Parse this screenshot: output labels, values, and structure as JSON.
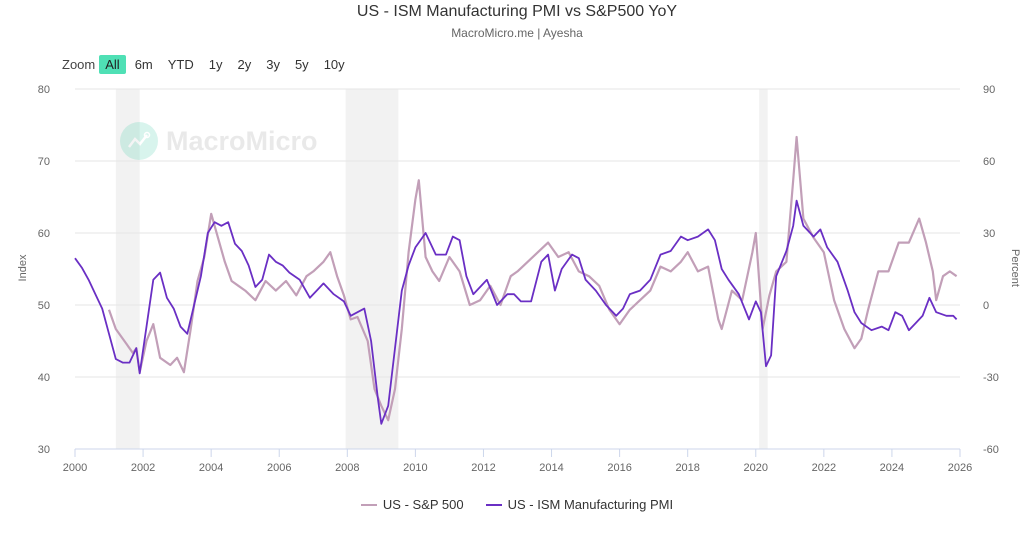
{
  "header": {
    "title": "US - ISM Manufacturing PMI vs S&P500 YoY",
    "subtitle": "MacroMicro.me | Ayesha"
  },
  "range_selector": {
    "label": "Zoom",
    "buttons": [
      "All",
      "6m",
      "YTD",
      "1y",
      "2y",
      "3y",
      "5y",
      "10y"
    ],
    "active": "All",
    "active_color": "#4fe0b5"
  },
  "watermark": {
    "text": "MacroMicro",
    "icon": "chart-logo-icon"
  },
  "legend": {
    "items": [
      {
        "label": "US - S&P 500",
        "color": "#c29fb8"
      },
      {
        "label": "US - ISM Manufacturing PMI",
        "color": "#6a2fc4"
      }
    ]
  },
  "chart_data": {
    "type": "line",
    "title": "US - ISM Manufacturing PMI vs S&P500 YoY",
    "subtitle": "MacroMicro.me | Ayesha",
    "xlabel": "",
    "x_range": [
      2000,
      2026
    ],
    "x_ticks": [
      "2000",
      "2002",
      "2004",
      "2006",
      "2008",
      "2010",
      "2012",
      "2014",
      "2016",
      "2018",
      "2020",
      "2022",
      "2024",
      "2026"
    ],
    "y_left": {
      "label": "Index",
      "range": [
        30,
        80
      ],
      "ticks": [
        30,
        40,
        50,
        60,
        70,
        80
      ]
    },
    "y_right": {
      "label": "Percent",
      "range": [
        -60,
        90
      ],
      "ticks": [
        -60,
        -30,
        0,
        30,
        60,
        90
      ]
    },
    "grid": true,
    "legend_position": "bottom",
    "recession_bands": [
      [
        2001.2,
        2001.9
      ],
      [
        2007.95,
        2009.5
      ],
      [
        2020.1,
        2020.35
      ]
    ],
    "series": [
      {
        "name": "US - S&P 500",
        "axis": "right",
        "color": "#c29fb8",
        "points": [
          [
            2001.0,
            -2
          ],
          [
            2001.2,
            -10
          ],
          [
            2001.5,
            -16
          ],
          [
            2001.7,
            -20
          ],
          [
            2001.8,
            -18
          ],
          [
            2001.9,
            -28
          ],
          [
            2002.1,
            -15
          ],
          [
            2002.3,
            -8
          ],
          [
            2002.5,
            -22
          ],
          [
            2002.8,
            -25
          ],
          [
            2003.0,
            -22
          ],
          [
            2003.2,
            -28
          ],
          [
            2003.4,
            -10
          ],
          [
            2003.6,
            10
          ],
          [
            2003.8,
            20
          ],
          [
            2004.0,
            38
          ],
          [
            2004.2,
            28
          ],
          [
            2004.4,
            18
          ],
          [
            2004.6,
            10
          ],
          [
            2004.8,
            8
          ],
          [
            2005.0,
            6
          ],
          [
            2005.3,
            2
          ],
          [
            2005.6,
            10
          ],
          [
            2005.9,
            6
          ],
          [
            2006.2,
            10
          ],
          [
            2006.5,
            4
          ],
          [
            2006.8,
            12
          ],
          [
            2007.0,
            14
          ],
          [
            2007.3,
            18
          ],
          [
            2007.5,
            22
          ],
          [
            2007.7,
            12
          ],
          [
            2007.9,
            4
          ],
          [
            2008.1,
            -6
          ],
          [
            2008.3,
            -5
          ],
          [
            2008.6,
            -15
          ],
          [
            2008.8,
            -35
          ],
          [
            2009.0,
            -42
          ],
          [
            2009.2,
            -48
          ],
          [
            2009.4,
            -35
          ],
          [
            2009.6,
            -10
          ],
          [
            2009.8,
            22
          ],
          [
            2010.0,
            44
          ],
          [
            2010.1,
            52
          ],
          [
            2010.3,
            20
          ],
          [
            2010.5,
            14
          ],
          [
            2010.7,
            10
          ],
          [
            2011.0,
            20
          ],
          [
            2011.3,
            14
          ],
          [
            2011.6,
            0
          ],
          [
            2011.9,
            2
          ],
          [
            2012.2,
            8
          ],
          [
            2012.5,
            0
          ],
          [
            2012.8,
            12
          ],
          [
            2013.0,
            14
          ],
          [
            2013.3,
            18
          ],
          [
            2013.6,
            22
          ],
          [
            2013.9,
            26
          ],
          [
            2014.2,
            20
          ],
          [
            2014.5,
            22
          ],
          [
            2014.8,
            14
          ],
          [
            2015.1,
            12
          ],
          [
            2015.4,
            8
          ],
          [
            2015.7,
            -2
          ],
          [
            2016.0,
            -8
          ],
          [
            2016.3,
            -2
          ],
          [
            2016.6,
            2
          ],
          [
            2016.9,
            6
          ],
          [
            2017.2,
            16
          ],
          [
            2017.5,
            14
          ],
          [
            2017.8,
            18
          ],
          [
            2018.0,
            22
          ],
          [
            2018.3,
            14
          ],
          [
            2018.6,
            16
          ],
          [
            2018.9,
            -6
          ],
          [
            2019.0,
            -10
          ],
          [
            2019.3,
            6
          ],
          [
            2019.6,
            2
          ],
          [
            2019.9,
            22
          ],
          [
            2020.0,
            30
          ],
          [
            2020.2,
            -10
          ],
          [
            2020.4,
            4
          ],
          [
            2020.6,
            14
          ],
          [
            2020.9,
            18
          ],
          [
            2021.1,
            52
          ],
          [
            2021.2,
            70
          ],
          [
            2021.4,
            36
          ],
          [
            2021.7,
            28
          ],
          [
            2022.0,
            22
          ],
          [
            2022.3,
            2
          ],
          [
            2022.6,
            -10
          ],
          [
            2022.9,
            -18
          ],
          [
            2023.1,
            -14
          ],
          [
            2023.3,
            -2
          ],
          [
            2023.6,
            14
          ],
          [
            2023.9,
            14
          ],
          [
            2024.2,
            26
          ],
          [
            2024.5,
            26
          ],
          [
            2024.8,
            36
          ],
          [
            2025.0,
            26
          ],
          [
            2025.2,
            14
          ],
          [
            2025.3,
            2
          ],
          [
            2025.5,
            12
          ],
          [
            2025.7,
            14
          ],
          [
            2025.9,
            12
          ]
        ]
      },
      {
        "name": "US - ISM Manufacturing PMI",
        "axis": "left",
        "color": "#6a2fc4",
        "points": [
          [
            2000.0,
            56.5
          ],
          [
            2000.2,
            55.2
          ],
          [
            2000.4,
            53.5
          ],
          [
            2000.6,
            51.5
          ],
          [
            2000.8,
            49.5
          ],
          [
            2001.0,
            46.0
          ],
          [
            2001.2,
            42.5
          ],
          [
            2001.4,
            42.0
          ],
          [
            2001.6,
            42.0
          ],
          [
            2001.8,
            44.0
          ],
          [
            2001.9,
            40.5
          ],
          [
            2002.1,
            47.0
          ],
          [
            2002.3,
            53.5
          ],
          [
            2002.5,
            54.5
          ],
          [
            2002.7,
            51.0
          ],
          [
            2002.9,
            49.5
          ],
          [
            2003.1,
            47.0
          ],
          [
            2003.3,
            46.0
          ],
          [
            2003.5,
            50.0
          ],
          [
            2003.7,
            54.0
          ],
          [
            2003.9,
            60.0
          ],
          [
            2004.1,
            61.5
          ],
          [
            2004.3,
            61.0
          ],
          [
            2004.5,
            61.5
          ],
          [
            2004.7,
            58.5
          ],
          [
            2004.9,
            57.5
          ],
          [
            2005.1,
            55.5
          ],
          [
            2005.3,
            52.5
          ],
          [
            2005.5,
            53.5
          ],
          [
            2005.7,
            57.0
          ],
          [
            2005.9,
            56.0
          ],
          [
            2006.1,
            55.5
          ],
          [
            2006.3,
            54.5
          ],
          [
            2006.6,
            53.5
          ],
          [
            2006.9,
            51.0
          ],
          [
            2007.1,
            52.0
          ],
          [
            2007.3,
            53.0
          ],
          [
            2007.6,
            51.5
          ],
          [
            2007.9,
            50.5
          ],
          [
            2008.1,
            48.5
          ],
          [
            2008.3,
            49.0
          ],
          [
            2008.5,
            49.5
          ],
          [
            2008.7,
            45.0
          ],
          [
            2008.9,
            37.0
          ],
          [
            2009.0,
            33.5
          ],
          [
            2009.2,
            36.0
          ],
          [
            2009.4,
            44.0
          ],
          [
            2009.6,
            52.0
          ],
          [
            2009.8,
            55.5
          ],
          [
            2010.0,
            58.0
          ],
          [
            2010.3,
            60.0
          ],
          [
            2010.6,
            57.0
          ],
          [
            2010.9,
            57.0
          ],
          [
            2011.1,
            59.5
          ],
          [
            2011.3,
            59.0
          ],
          [
            2011.5,
            54.0
          ],
          [
            2011.7,
            51.5
          ],
          [
            2011.9,
            52.5
          ],
          [
            2012.1,
            53.5
          ],
          [
            2012.4,
            50.0
          ],
          [
            2012.7,
            51.5
          ],
          [
            2012.9,
            51.5
          ],
          [
            2013.1,
            50.5
          ],
          [
            2013.4,
            50.5
          ],
          [
            2013.7,
            56.0
          ],
          [
            2013.9,
            57.0
          ],
          [
            2014.1,
            52.0
          ],
          [
            2014.3,
            55.0
          ],
          [
            2014.6,
            57.0
          ],
          [
            2014.8,
            56.5
          ],
          [
            2015.0,
            53.5
          ],
          [
            2015.3,
            52.0
          ],
          [
            2015.6,
            50.0
          ],
          [
            2015.9,
            48.5
          ],
          [
            2016.1,
            49.5
          ],
          [
            2016.3,
            51.5
          ],
          [
            2016.6,
            52.0
          ],
          [
            2016.9,
            53.5
          ],
          [
            2017.2,
            57.0
          ],
          [
            2017.5,
            57.5
          ],
          [
            2017.8,
            59.5
          ],
          [
            2018.0,
            59.0
          ],
          [
            2018.3,
            59.5
          ],
          [
            2018.6,
            60.5
          ],
          [
            2018.8,
            59.0
          ],
          [
            2019.0,
            55.0
          ],
          [
            2019.2,
            53.5
          ],
          [
            2019.5,
            51.5
          ],
          [
            2019.8,
            48.0
          ],
          [
            2020.0,
            50.5
          ],
          [
            2020.15,
            49.0
          ],
          [
            2020.3,
            41.5
          ],
          [
            2020.45,
            43.0
          ],
          [
            2020.6,
            54.0
          ],
          [
            2020.9,
            57.5
          ],
          [
            2021.1,
            61.0
          ],
          [
            2021.2,
            64.5
          ],
          [
            2021.4,
            61.0
          ],
          [
            2021.7,
            59.5
          ],
          [
            2021.9,
            60.5
          ],
          [
            2022.1,
            58.0
          ],
          [
            2022.4,
            56.0
          ],
          [
            2022.7,
            52.0
          ],
          [
            2022.9,
            49.0
          ],
          [
            2023.1,
            47.5
          ],
          [
            2023.4,
            46.5
          ],
          [
            2023.7,
            47.0
          ],
          [
            2023.9,
            46.5
          ],
          [
            2024.1,
            49.0
          ],
          [
            2024.3,
            48.5
          ],
          [
            2024.5,
            46.5
          ],
          [
            2024.7,
            47.5
          ],
          [
            2024.9,
            48.5
          ],
          [
            2025.1,
            51.0
          ],
          [
            2025.3,
            49.0
          ],
          [
            2025.6,
            48.5
          ],
          [
            2025.8,
            48.5
          ],
          [
            2025.9,
            48.0
          ]
        ]
      }
    ]
  }
}
